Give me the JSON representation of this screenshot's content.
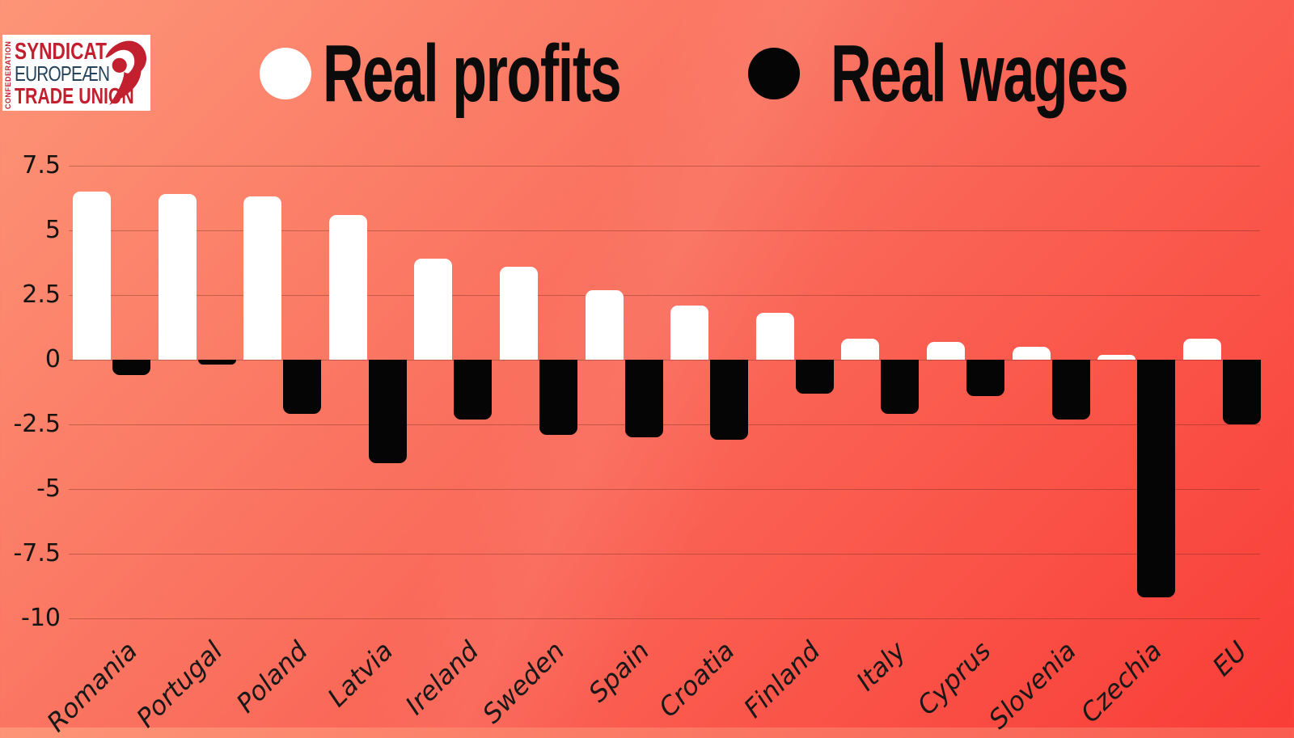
{
  "logo": {
    "vertical_text": "CONFEDERATION",
    "line1": "SYNDICAT",
    "line2": "EUROPEÆN",
    "line3": "TRADE UNION",
    "red": "#c2202f",
    "navy": "#25445c"
  },
  "legend": [
    {
      "label": "Real profits",
      "color": "#ffffff"
    },
    {
      "label": "Real wages",
      "color": "#000000"
    }
  ],
  "colors": {
    "background_top_left": "#fd9577",
    "background_bottom_right": "#f93d37",
    "bar_profits": "#ffffff",
    "bar_wages": "#050505",
    "gridline": "rgba(80,28,22,0.32)",
    "text": "#141414"
  },
  "chart_data": {
    "type": "bar",
    "title": "",
    "xlabel": "",
    "ylabel": "",
    "categories": [
      "Romania",
      "Portugal",
      "Poland",
      "Latvia",
      "Ireland",
      "Sweden",
      "Spain",
      "Croatia",
      "Finland",
      "Italy",
      "Cyprus",
      "Slovenia",
      "Czechia",
      "EU"
    ],
    "series": [
      {
        "name": "Real profits",
        "color": "#ffffff",
        "values": [
          6.5,
          6.4,
          6.3,
          5.6,
          3.9,
          3.6,
          2.7,
          2.1,
          1.8,
          0.8,
          0.7,
          0.5,
          0.2,
          0.8
        ]
      },
      {
        "name": "Real wages",
        "color": "#000000",
        "values": [
          -0.6,
          -0.2,
          -2.1,
          -4.0,
          -2.3,
          -2.9,
          -3.0,
          -3.1,
          -1.3,
          -2.1,
          -1.4,
          -2.3,
          -9.2,
          -2.5
        ]
      }
    ],
    "yticks": [
      7.5,
      5,
      2.5,
      0,
      -2.5,
      -5,
      -7.5,
      -10
    ],
    "ytick_labels": [
      "7.5",
      "5",
      "2.5",
      "0",
      "-2.5",
      "-5",
      "-7.5",
      "-10"
    ],
    "ylim": [
      -10.6,
      8.1
    ],
    "grid": true,
    "legend_position": "top-center"
  }
}
